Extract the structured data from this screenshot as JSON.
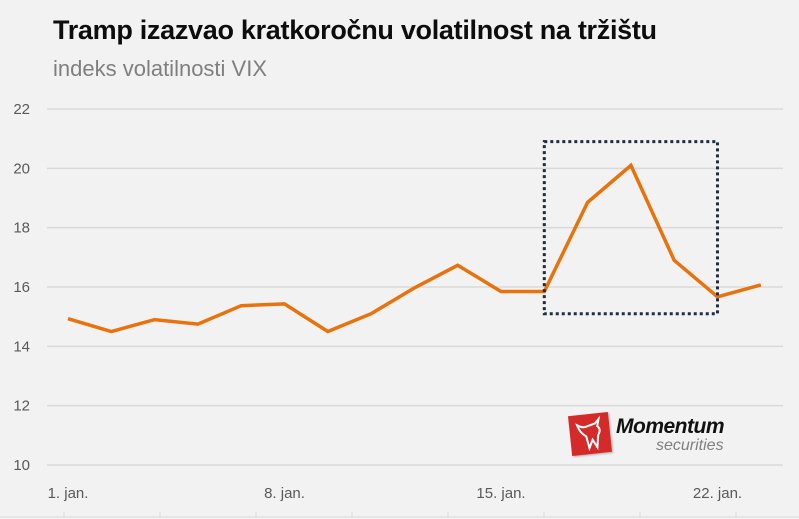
{
  "header": {
    "title": "Tramp izazvao kratkoročnu volatilnost na tržištu",
    "subtitle": "indeks volatilnosti VIX"
  },
  "logo": {
    "name": "Momentum",
    "sub": "securities"
  },
  "colors": {
    "line": "#e8720c",
    "grid": "#d9d9d9",
    "highlight_box": "#1f2d3d",
    "background": "#f2f2f2"
  },
  "chart_data": {
    "type": "line",
    "title": "Tramp izazvao kratkoročnu volatilnost na tržištu",
    "subtitle": "indeks volatilnosti VIX",
    "xlabel": "",
    "ylabel": "",
    "ylim": [
      10,
      22
    ],
    "yticks": [
      10,
      12,
      14,
      16,
      18,
      20,
      22
    ],
    "grid": true,
    "legend": "none",
    "x_tick_labels": [
      {
        "index": 0,
        "label": "1. jan."
      },
      {
        "index": 5,
        "label": "8. jan."
      },
      {
        "index": 10,
        "label": "15. jan."
      },
      {
        "index": 15,
        "label": "22. jan."
      }
    ],
    "series": [
      {
        "name": "VIX",
        "values": [
          14.93,
          14.5,
          14.9,
          14.75,
          15.37,
          15.43,
          14.5,
          15.1,
          15.97,
          16.73,
          15.85,
          15.85,
          18.85,
          20.1,
          16.9,
          15.67,
          16.07
        ]
      }
    ],
    "annotations": [
      {
        "type": "dotted-rectangle",
        "from_index": 11,
        "to_index": 15,
        "y_range": [
          15.1,
          20.9
        ]
      }
    ]
  }
}
